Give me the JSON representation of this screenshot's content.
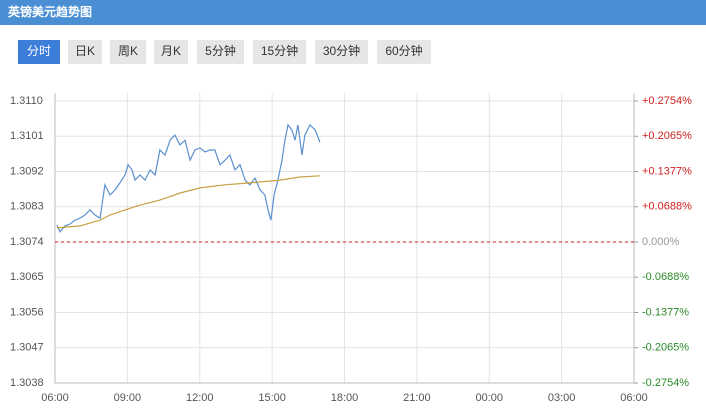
{
  "tabs": [
    "分时",
    "日K",
    "周K",
    "月K",
    "5分钟",
    "15分钟",
    "30分钟",
    "60分钟"
  ],
  "chart_data": {
    "type": "line",
    "title": "英镑美元趋势图",
    "xlim": [
      0,
      24
    ],
    "xticks": [
      {
        "value": 0,
        "label": "06:00"
      },
      {
        "value": 3,
        "label": "09:00"
      },
      {
        "value": 6,
        "label": "12:00"
      },
      {
        "value": 9,
        "label": "15:00"
      },
      {
        "value": 12,
        "label": "18:00"
      },
      {
        "value": 15,
        "label": "21:00"
      },
      {
        "value": 18,
        "label": "00:00"
      },
      {
        "value": 21,
        "label": "03:00"
      },
      {
        "value": 24,
        "label": "06:00"
      }
    ],
    "ylim": [
      1.3038,
      1.311
    ],
    "yticks": [
      {
        "value": 1.311,
        "label": "1.3110"
      },
      1.3101,
      1.3092,
      1.3083,
      1.3074,
      1.3065,
      1.3056,
      1.3047,
      1.3038
    ],
    "y2lim": [
      -0.2754,
      0.2754
    ],
    "y2ticks": [
      {
        "value": 0.2754,
        "label": "+0.2754%"
      },
      {
        "value": 0.2065,
        "label": "+0.2065%"
      },
      {
        "value": 0.1377,
        "label": "+0.1377%"
      },
      {
        "value": 0.0688,
        "label": "+0.0688%"
      },
      {
        "value": 0,
        "label": "0.000%"
      },
      {
        "value": -0.0688,
        "label": "-0.0688%"
      },
      {
        "value": -0.1377,
        "label": "-0.1377%"
      },
      {
        "value": -0.2065,
        "label": "-0.2065%"
      },
      {
        "value": -0.2754,
        "label": "-0.2754%"
      }
    ],
    "reference": 1.3074,
    "reference_color": "#cc2222",
    "up_color": "#cc2222",
    "down_color": "#2a8a2a",
    "grid": true,
    "series": [
      {
        "color": "#5b8fd0",
        "x": [
          0.08,
          0.21,
          0.41,
          0.62,
          0.83,
          1.04,
          1.24,
          1.45,
          1.66,
          1.87,
          2.07,
          2.28,
          2.49,
          2.69,
          2.9,
          3.03,
          3.19,
          3.32,
          3.52,
          3.73,
          3.94,
          4.15,
          4.35,
          4.56,
          4.77,
          4.97,
          5.18,
          5.39,
          5.6,
          5.8,
          6.01,
          6.22,
          6.42,
          6.63,
          6.84,
          7.05,
          7.25,
          7.46,
          7.67,
          7.88,
          8.08,
          8.29,
          8.5,
          8.7,
          8.83,
          8.95,
          9.08,
          9.24,
          9.41,
          9.53,
          9.66,
          9.82,
          9.95,
          10.07,
          10.24,
          10.36,
          10.57,
          10.78,
          10.98
        ],
        "values": [
          1.30783,
          1.30766,
          1.30781,
          1.30786,
          1.30796,
          1.30801,
          1.30809,
          1.30822,
          1.30809,
          1.30801,
          1.30886,
          1.3086,
          1.30873,
          1.30891,
          1.30911,
          1.30937,
          1.30924,
          1.30898,
          1.30911,
          1.30898,
          1.30924,
          1.30911,
          1.30975,
          1.30962,
          1.31,
          1.31013,
          1.30988,
          1.31,
          1.30949,
          1.30975,
          1.3098,
          1.3097,
          1.30975,
          1.30975,
          1.30937,
          1.30949,
          1.30962,
          1.30924,
          1.30937,
          1.30898,
          1.30886,
          1.30903,
          1.30873,
          1.3086,
          1.30822,
          1.30796,
          1.3086,
          1.30898,
          1.30949,
          1.31,
          1.31039,
          1.31026,
          1.31,
          1.31039,
          1.30962,
          1.31013,
          1.31039,
          1.31026,
          1.30995
        ]
      },
      {
        "color": "#c9a043",
        "x": [
          0.08,
          1.04,
          1.87,
          2.28,
          2.9,
          3.52,
          4.35,
          5.18,
          6.01,
          7.05,
          8.08,
          9.33,
          10.16,
          10.98
        ],
        "values": [
          1.30776,
          1.30781,
          1.30796,
          1.30809,
          1.30822,
          1.30834,
          1.30847,
          1.30865,
          1.30878,
          1.30886,
          1.30891,
          1.30898,
          1.30906,
          1.30909
        ]
      }
    ]
  }
}
